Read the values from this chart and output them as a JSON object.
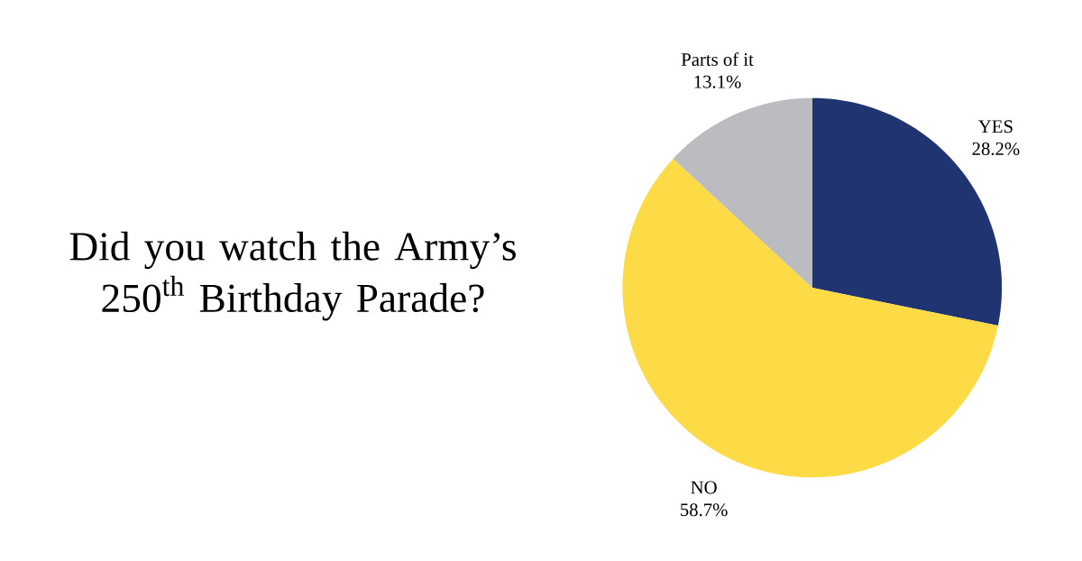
{
  "chart_data": {
    "type": "pie",
    "title": "Did you watch the Army’s 250$^{th}$ Birthday Parade?",
    "categories": [
      "YES",
      "NO",
      "Parts of it"
    ],
    "values": [
      28.2,
      58.7,
      13.1
    ],
    "colors": [
      "#1f3470",
      "#fcdb47",
      "#bbbcc0"
    ],
    "value_labels": [
      "28.2%",
      "58.7%",
      "13.1%"
    ]
  }
}
